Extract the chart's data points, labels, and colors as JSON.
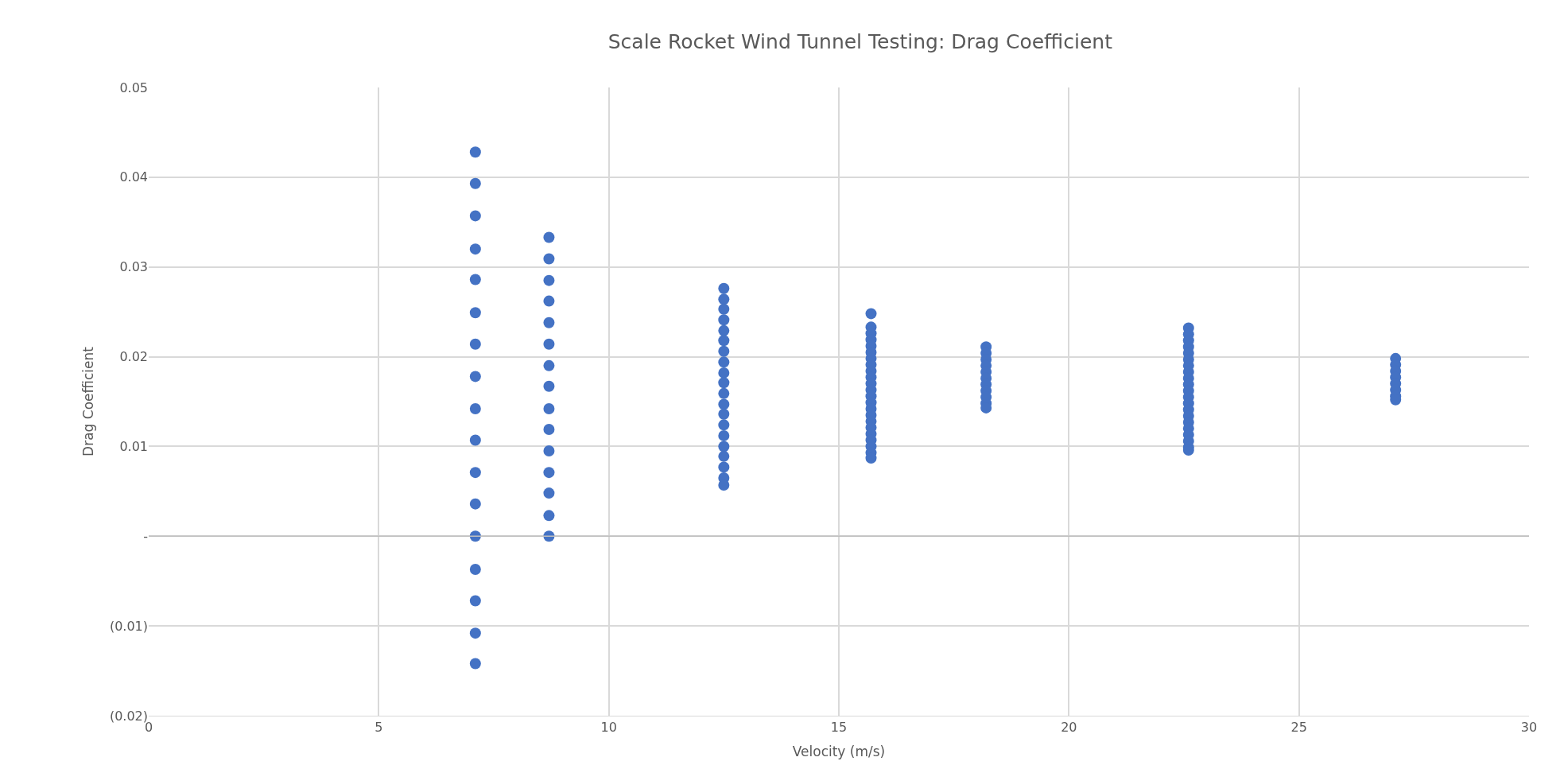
{
  "chart_data": {
    "type": "scatter",
    "title": "Scale Rocket Wind Tunnel Testing: Drag Coefficient",
    "xlabel": "Velocity (m/s)",
    "ylabel": "Drag Coefficient",
    "x": [
      7.1,
      7.1,
      7.1,
      7.1,
      7.1,
      7.1,
      7.1,
      7.1,
      7.1,
      7.1,
      7.1,
      7.1,
      7.1,
      7.1,
      7.1,
      7.1,
      7.1,
      8.7,
      8.7,
      8.7,
      8.7,
      8.7,
      8.7,
      8.7,
      8.7,
      8.7,
      8.7,
      8.7,
      8.7,
      8.7,
      8.7,
      8.7,
      12.5,
      12.5,
      12.5,
      12.5,
      12.5,
      12.5,
      12.5,
      12.5,
      12.5,
      12.5,
      12.5,
      12.5,
      12.5,
      12.5,
      12.5,
      12.5,
      12.5,
      12.5,
      12.5,
      12.5,
      15.7,
      15.7,
      15.7,
      15.7,
      15.7,
      15.7,
      15.7,
      15.7,
      15.7,
      15.7,
      15.7,
      15.7,
      15.7,
      15.7,
      15.7,
      15.7,
      15.7,
      15.7,
      15.7,
      15.7,
      15.7,
      15.7,
      15.7,
      18.2,
      18.2,
      18.2,
      18.2,
      18.2,
      18.2,
      18.2,
      18.2,
      18.2,
      18.2,
      18.2,
      22.6,
      22.6,
      22.6,
      22.6,
      22.6,
      22.6,
      22.6,
      22.6,
      22.6,
      22.6,
      22.6,
      22.6,
      22.6,
      22.6,
      22.6,
      22.6,
      22.6,
      22.6,
      22.6,
      22.6,
      22.6,
      27.1,
      27.1,
      27.1,
      27.1,
      27.1,
      27.1,
      27.1,
      27.1
    ],
    "values": [
      0.0428,
      0.0393,
      0.0357,
      0.032,
      0.0286,
      0.0249,
      0.0214,
      0.0178,
      0.0142,
      0.0107,
      0.0071,
      0.0036,
      0,
      -0.0037,
      -0.0072,
      -0.0108,
      -0.0142,
      0.0333,
      0.0309,
      0.0285,
      0.0262,
      0.0238,
      0.0214,
      0.019,
      0.0167,
      0.0142,
      0.0119,
      0.0095,
      0.0071,
      0.0048,
      0.0023,
      0,
      0.0276,
      0.0264,
      0.0253,
      0.0241,
      0.0229,
      0.0218,
      0.0206,
      0.0194,
      0.0182,
      0.0171,
      0.0159,
      0.0147,
      0.0136,
      0.0124,
      0.0112,
      0.01,
      0.0089,
      0.0077,
      0.0065,
      0.0057,
      0.0248,
      0.0233,
      0.0226,
      0.0219,
      0.0212,
      0.0205,
      0.0198,
      0.0191,
      0.0184,
      0.0177,
      0.017,
      0.0163,
      0.0156,
      0.0149,
      0.0142,
      0.0135,
      0.0128,
      0.0121,
      0.0114,
      0.0107,
      0.01,
      0.0093,
      0.0087,
      0.0211,
      0.0204,
      0.0197,
      0.019,
      0.0183,
      0.0176,
      0.0169,
      0.0162,
      0.0155,
      0.0148,
      0.0143,
      0.0232,
      0.0225,
      0.0218,
      0.0211,
      0.0204,
      0.0197,
      0.019,
      0.0183,
      0.0176,
      0.0169,
      0.0162,
      0.0155,
      0.0148,
      0.0141,
      0.0134,
      0.0127,
      0.012,
      0.0113,
      0.0106,
      0.0099,
      0.0096,
      0.0198,
      0.0191,
      0.0184,
      0.0177,
      0.017,
      0.0163,
      0.0156,
      0.0152
    ],
    "color": "#4472c4",
    "marker": "circle",
    "xlim": [
      0,
      30
    ],
    "xticks": [
      0,
      5,
      10,
      15,
      20,
      25,
      30
    ],
    "ylim": [
      -0.02,
      0.05
    ],
    "yticks": [
      {
        "value": -0.02,
        "label": "(0.02)"
      },
      {
        "value": -0.01,
        "label": "(0.01)"
      },
      {
        "value": 0,
        "label": "-"
      },
      0.01,
      0.02,
      0.03,
      0.04,
      0.05
    ],
    "grid": true
  }
}
